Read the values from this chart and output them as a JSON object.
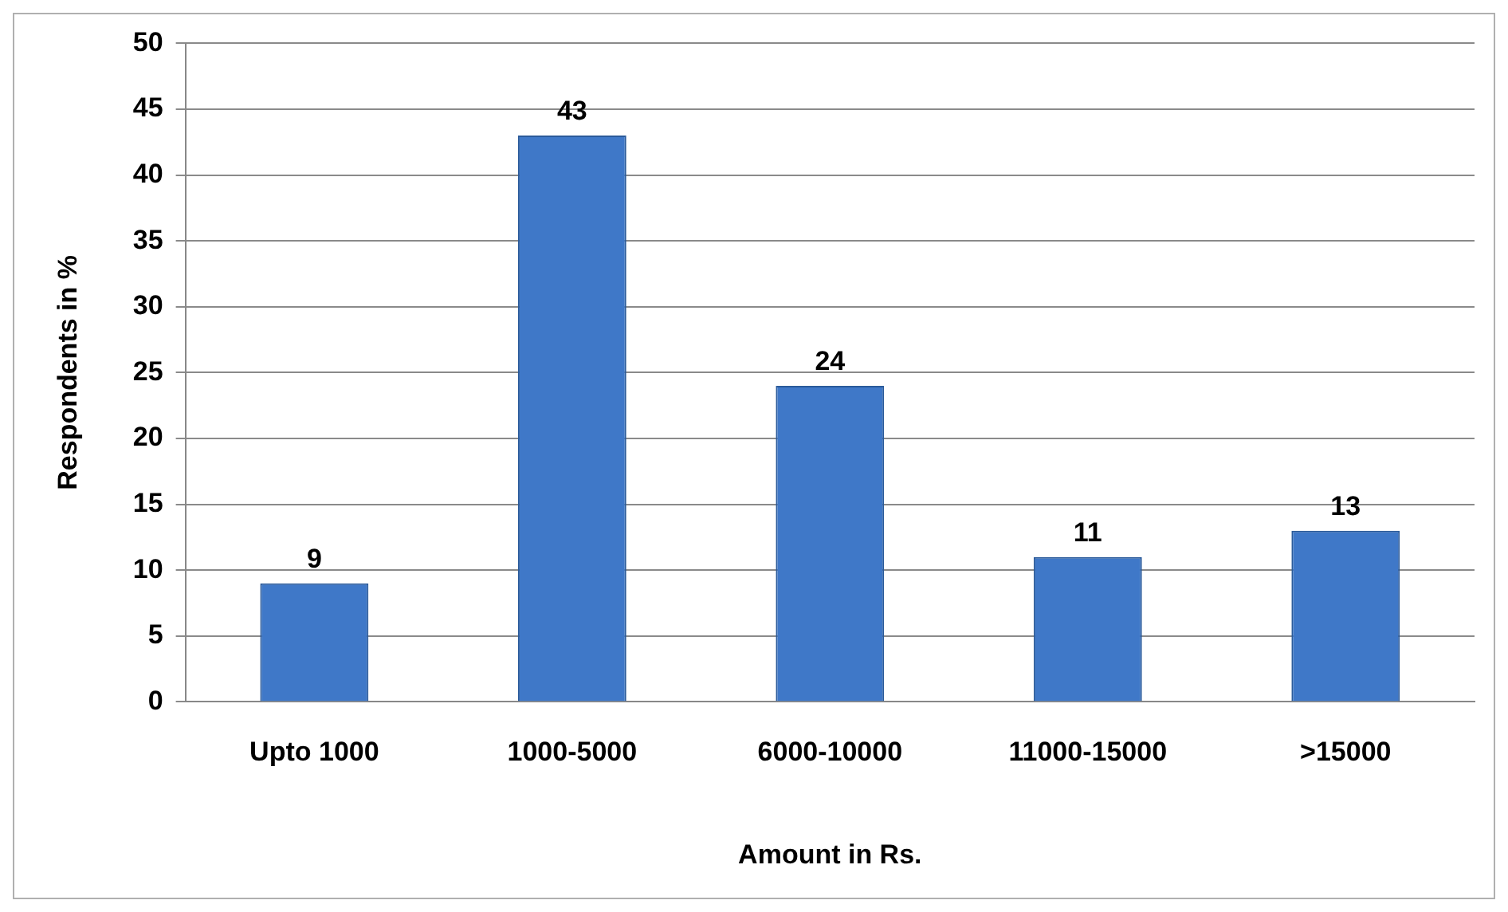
{
  "chart_data": {
    "type": "bar",
    "xlabel": "Amount in Rs.",
    "ylabel": "Respondents in %",
    "categories": [
      "Upto 1000",
      "1000-5000",
      "6000-10000",
      "11000-15000",
      ">15000"
    ],
    "values": [
      9,
      43,
      24,
      11,
      13
    ],
    "color": "#3f78c8",
    "ylim": [
      0,
      50
    ],
    "yticks": [
      0,
      5,
      10,
      15,
      20,
      25,
      30,
      35,
      40,
      45,
      50
    ],
    "grid": "y",
    "data_labels": true,
    "legend": false
  }
}
